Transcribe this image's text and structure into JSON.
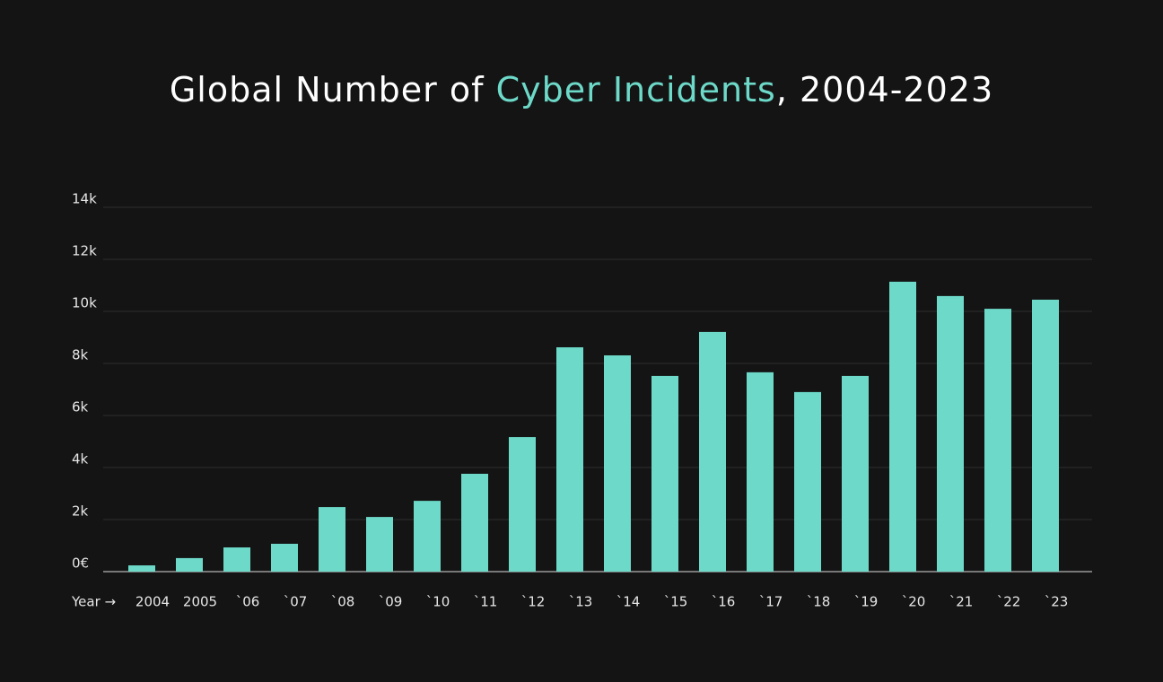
{
  "chart_data": {
    "type": "bar",
    "title": {
      "parts": [
        "Global Number of ",
        "Cyber Incidents",
        ", 2004-2023"
      ],
      "highlight": 1,
      "highlight_color": "#6dd9c8"
    },
    "xlabel": "Year →",
    "categories": [
      "2004",
      "2005",
      "`06",
      "`07",
      "`08",
      "`09",
      "`10",
      "`11",
      "`12",
      "`13",
      "`14",
      "`15",
      "`16",
      "`17",
      "`18",
      "`19",
      "`20",
      "`21",
      "`22",
      "`23"
    ],
    "values": [
      240,
      520,
      930,
      1070,
      2480,
      2100,
      2720,
      3760,
      5170,
      8620,
      8310,
      7520,
      9210,
      7660,
      6900,
      7520,
      11140,
      10590,
      10100,
      10450
    ],
    "color": "#6dd9c8",
    "ylim": [
      0,
      14000
    ],
    "yticks": [
      {
        "value": 0,
        "label": "0€"
      },
      {
        "value": 2000,
        "label": "2k"
      },
      {
        "value": 4000,
        "label": "4k"
      },
      {
        "value": 6000,
        "label": "6k"
      },
      {
        "value": 8000,
        "label": "8k"
      },
      {
        "value": 10000,
        "label": "10k"
      },
      {
        "value": 12000,
        "label": "12k"
      },
      {
        "value": 14000,
        "label": "14k"
      }
    ],
    "grid": true
  }
}
